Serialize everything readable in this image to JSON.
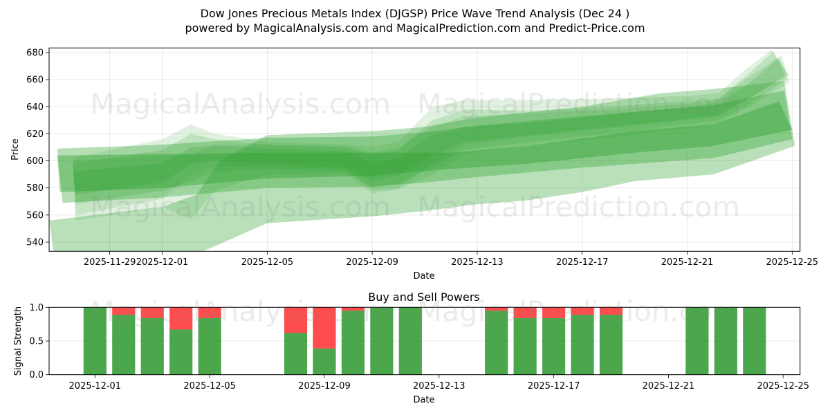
{
  "title": {
    "line1": "Dow Jones Precious Metals Index (DJGSP) Price Wave Trend Analysis (Dec 24 )",
    "line2": "powered by MagicalAnalysis.com and MagicalPrediction.com and Predict-Price.com"
  },
  "watermarks": [
    "MagicalAnalysis.com",
    "MagicalPrediction.com"
  ],
  "colors": {
    "band": "#2ca02c",
    "buy": "#008000",
    "sell": "#ff0000",
    "grid": "#b0b0b0"
  },
  "chart_data": [
    {
      "type": "area",
      "title": "",
      "xlabel": "Date",
      "ylabel": "Price",
      "x_unit": "days since 2025-12-01",
      "xlim": [
        -4.31,
        24.3
      ],
      "ylim": [
        533.2,
        683.4
      ],
      "grid": true,
      "yticks": [
        540,
        560,
        580,
        600,
        620,
        640,
        660,
        680
      ],
      "xticks": [
        {
          "label": "2025-11-29",
          "x": -2
        },
        {
          "label": "2025-12-01",
          "x": 0
        },
        {
          "label": "2025-12-05",
          "x": 4
        },
        {
          "label": "2025-12-09",
          "x": 8
        },
        {
          "label": "2025-12-13",
          "x": 12
        },
        {
          "label": "2025-12-17",
          "x": 16
        },
        {
          "label": "2025-12-21",
          "x": 20
        },
        {
          "label": "2025-12-25",
          "x": 24
        }
      ],
      "bands": [
        {
          "name": "wide-lower-band",
          "alpha": 0.33,
          "upper": [
            [
              -4.3,
              556
            ],
            [
              0,
              566
            ],
            [
              1.3,
              575
            ],
            [
              2.2,
              600
            ],
            [
              4,
              619
            ],
            [
              8,
              622
            ],
            [
              10,
              625
            ],
            [
              12,
              632
            ],
            [
              16,
              640
            ],
            [
              19,
              650
            ],
            [
              21,
              653
            ],
            [
              23.7,
              659
            ]
          ],
          "lower": [
            [
              -4.1,
              526
            ],
            [
              0,
              521
            ],
            [
              1,
              529
            ],
            [
              2,
              537
            ],
            [
              4,
              554
            ],
            [
              8,
              559
            ],
            [
              10,
              563
            ],
            [
              12,
              568
            ],
            [
              14,
              571
            ],
            [
              16,
              577
            ],
            [
              18,
              585
            ],
            [
              21,
              590
            ],
            [
              24.1,
              611
            ]
          ]
        },
        {
          "name": "wide-medium-band",
          "alpha": 0.35,
          "upper": [
            [
              -4.0,
              609
            ],
            [
              0,
              612
            ],
            [
              4,
              617
            ],
            [
              8,
              618
            ],
            [
              10,
              621
            ],
            [
              12,
              626
            ],
            [
              16,
              633
            ],
            [
              21,
              641
            ],
            [
              23.7,
              652
            ]
          ],
          "lower": [
            [
              -3.8,
              569
            ],
            [
              0,
              573
            ],
            [
              4,
              580
            ],
            [
              8,
              581
            ],
            [
              10,
              584
            ],
            [
              12,
              588
            ],
            [
              16,
              595
            ],
            [
              21,
              602
            ],
            [
              24.0,
              616
            ]
          ]
        },
        {
          "name": "core-band",
          "alpha": 0.4,
          "upper": [
            [
              -4.0,
              604
            ],
            [
              0,
              605
            ],
            [
              4,
              606
            ],
            [
              8,
              606
            ],
            [
              11,
              606
            ],
            [
              14,
              611
            ],
            [
              18,
              622
            ],
            [
              21,
              627
            ],
            [
              23.5,
              644
            ]
          ],
          "lower": [
            [
              -3.9,
              577
            ],
            [
              0,
              580
            ],
            [
              4,
              587
            ],
            [
              8,
              589
            ],
            [
              11,
              594
            ],
            [
              14,
              598
            ],
            [
              18,
              606
            ],
            [
              21,
              611
            ],
            [
              24.0,
              623
            ]
          ]
        },
        {
          "name": "wave-a",
          "alpha": 0.22,
          "upper": [
            [
              -3.4,
              592
            ],
            [
              0,
              598
            ],
            [
              1.1,
              610
            ],
            [
              2,
              611
            ],
            [
              4,
              609
            ],
            [
              7,
              607
            ],
            [
              8,
              598
            ],
            [
              9,
              602
            ],
            [
              10.3,
              619
            ],
            [
              11.5,
              625
            ],
            [
              14,
              628
            ],
            [
              17,
              634
            ],
            [
              20,
              640
            ],
            [
              21.2,
              643
            ],
            [
              22.2,
              655
            ],
            [
              23.5,
              676
            ]
          ],
          "lower": [
            [
              -3.3,
              575
            ],
            [
              0,
              584
            ],
            [
              1.1,
              598
            ],
            [
              2,
              600
            ],
            [
              4,
              598
            ],
            [
              7,
              595
            ],
            [
              8,
              585
            ],
            [
              9,
              589
            ],
            [
              10.3,
              604
            ],
            [
              11.5,
              614
            ],
            [
              14,
              619
            ],
            [
              17,
              625
            ],
            [
              20,
              631
            ],
            [
              21.2,
              634
            ],
            [
              22.2,
              644
            ],
            [
              23.8,
              664
            ]
          ]
        },
        {
          "name": "wave-b",
          "alpha": 0.18,
          "upper": [
            [
              -3.4,
              598
            ],
            [
              0,
              608
            ],
            [
              1.1,
              620
            ],
            [
              2,
              616
            ],
            [
              4,
              612
            ],
            [
              7,
              610
            ],
            [
              8,
              604
            ],
            [
              9,
              608
            ],
            [
              10.3,
              630
            ],
            [
              11.5,
              638
            ],
            [
              14,
              637
            ],
            [
              17,
              640
            ],
            [
              20,
              644
            ],
            [
              21.2,
              646
            ],
            [
              22.2,
              662
            ],
            [
              23.3,
              681
            ]
          ],
          "lower": [
            [
              -3.3,
              568
            ],
            [
              0,
              578
            ],
            [
              1.1,
              585
            ],
            [
              2,
              592
            ],
            [
              4,
              594
            ],
            [
              7,
              592
            ],
            [
              8,
              580
            ],
            [
              9,
              583
            ],
            [
              10.3,
              596
            ],
            [
              11.5,
              608
            ],
            [
              14,
              614
            ],
            [
              17,
              620
            ],
            [
              20,
              627
            ],
            [
              21.2,
              630
            ],
            [
              22.2,
              640
            ],
            [
              23.8,
              660
            ]
          ]
        },
        {
          "name": "wave-c",
          "alpha": 0.15,
          "upper": [
            [
              -3.4,
              602
            ],
            [
              0,
              616
            ],
            [
              1.1,
              627
            ],
            [
              2,
              620
            ],
            [
              4,
              614
            ],
            [
              7,
              612
            ],
            [
              8,
              610
            ],
            [
              9,
              614
            ],
            [
              10.3,
              640
            ],
            [
              11.5,
              645
            ],
            [
              14,
              645
            ],
            [
              17,
              646
            ],
            [
              20,
              648
            ],
            [
              21.2,
              650
            ],
            [
              22.2,
              667
            ],
            [
              23.2,
              682
            ]
          ],
          "lower": [
            [
              -3.3,
              560
            ],
            [
              0,
              572
            ],
            [
              1.1,
              590
            ],
            [
              2,
              596
            ],
            [
              4,
              596
            ],
            [
              7,
              594
            ],
            [
              8,
              578
            ],
            [
              9,
              580
            ],
            [
              10.3,
              598
            ],
            [
              11.5,
              612
            ],
            [
              14,
              618
            ],
            [
              17,
              624
            ],
            [
              20,
              630
            ],
            [
              21.2,
              633
            ],
            [
              22.2,
              645
            ],
            [
              23.9,
              663
            ]
          ]
        },
        {
          "name": "wave-d",
          "alpha": 0.15,
          "upper": [
            [
              -3.4,
              600
            ],
            [
              0,
              604
            ],
            [
              1.1,
              604
            ],
            [
              2,
              612
            ],
            [
              4,
              612
            ],
            [
              7,
              611
            ],
            [
              8,
              606
            ],
            [
              9,
              610
            ],
            [
              10.3,
              625
            ],
            [
              11.5,
              633
            ],
            [
              14,
              635
            ],
            [
              17,
              638
            ],
            [
              20,
              642
            ],
            [
              21.2,
              645
            ],
            [
              22.2,
              660
            ],
            [
              23.6,
              678
            ]
          ],
          "lower": [
            [
              -3.3,
              556
            ],
            [
              0,
              566
            ],
            [
              1.1,
              557
            ],
            [
              2,
              578
            ],
            [
              4,
              590
            ],
            [
              7,
              590
            ],
            [
              8,
              576
            ],
            [
              9,
              579
            ],
            [
              10.3,
              590
            ],
            [
              11.5,
              605
            ],
            [
              14,
              611
            ],
            [
              17,
              617
            ],
            [
              20,
              624
            ],
            [
              21.2,
              628
            ],
            [
              22.2,
              638
            ],
            [
              23.9,
              658
            ]
          ]
        }
      ]
    },
    {
      "type": "bar",
      "title": "Buy and Sell Powers",
      "xlabel": "Date",
      "ylabel": "Signal Strength",
      "x_unit": "days since 2025-12-01",
      "xlim": [
        -1.6,
        24.59
      ],
      "ylim": [
        0,
        1.0
      ],
      "grid": true,
      "bar_width": 0.8,
      "yticks": [
        {
          "label": "0.0",
          "v": 0
        },
        {
          "label": "0.5",
          "v": 0.5
        },
        {
          "label": "1.0",
          "v": 1.0
        }
      ],
      "xticks": [
        {
          "label": "2025-12-01",
          "x": 0
        },
        {
          "label": "2025-12-05",
          "x": 4
        },
        {
          "label": "2025-12-09",
          "x": 8
        },
        {
          "label": "2025-12-13",
          "x": 12
        },
        {
          "label": "2025-12-17",
          "x": 16
        },
        {
          "label": "2025-12-21",
          "x": 20
        },
        {
          "label": "2025-12-25",
          "x": 24
        }
      ],
      "categories": [
        "2025-12-01",
        "2025-12-02",
        "2025-12-03",
        "2025-12-04",
        "2025-12-05",
        "2025-12-08",
        "2025-12-09",
        "2025-12-10",
        "2025-12-11",
        "2025-12-12",
        "2025-12-15",
        "2025-12-16",
        "2025-12-17",
        "2025-12-18",
        "2025-12-19",
        "2025-12-22",
        "2025-12-23",
        "2025-12-24"
      ],
      "x": [
        0,
        1,
        2,
        3,
        4,
        7,
        8,
        9,
        10,
        11,
        14,
        15,
        16,
        17,
        18,
        21,
        22,
        23
      ],
      "series": [
        {
          "name": "Buy",
          "color": "#008000",
          "values": [
            1.0,
            0.89,
            0.84,
            0.67,
            0.84,
            0.62,
            0.39,
            0.95,
            1.0,
            1.0,
            0.95,
            0.84,
            0.84,
            0.89,
            0.89,
            1.0,
            1.0,
            1.0
          ]
        },
        {
          "name": "Sell",
          "color": "#ff0000",
          "values": [
            0.0,
            0.11,
            0.16,
            0.33,
            0.16,
            0.38,
            0.61,
            0.05,
            0.0,
            0.0,
            0.05,
            0.16,
            0.16,
            0.11,
            0.11,
            0.0,
            0.0,
            0.0
          ]
        }
      ]
    }
  ]
}
